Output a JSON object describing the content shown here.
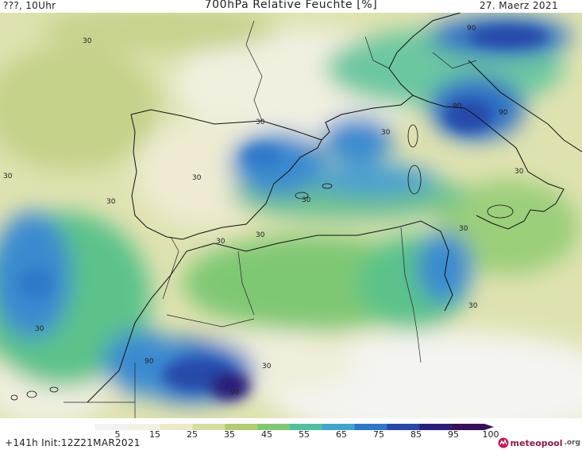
{
  "header": {
    "top_left": "???, 10Uhr",
    "title": "700hPa Relative Feuchte [%]",
    "date": "27. Maerz 2021"
  },
  "map": {
    "isoline_labels": [
      "30",
      "90",
      "90",
      "90",
      "30",
      "30",
      "30",
      "30",
      "30",
      "30",
      "30",
      "30",
      "30",
      "30",
      "30",
      "30",
      "90",
      "90",
      "30"
    ]
  },
  "legend": {
    "ticks": [
      "5",
      "15",
      "25",
      "35",
      "45",
      "55",
      "65",
      "75",
      "85",
      "95",
      "100"
    ],
    "colors": [
      "#f2f2f2",
      "#f3f1e4",
      "#ece9c8",
      "#d8dca0",
      "#b3cc70",
      "#7fc873",
      "#4ec0a0",
      "#3ea6cc",
      "#2d78c8",
      "#2649a8",
      "#2a1f78",
      "#3a0f5a"
    ]
  },
  "footer": {
    "run_info": "+141h  Init:12Z21MAR2021",
    "logo_text": "meteopool",
    "logo_tld": ".org"
  }
}
